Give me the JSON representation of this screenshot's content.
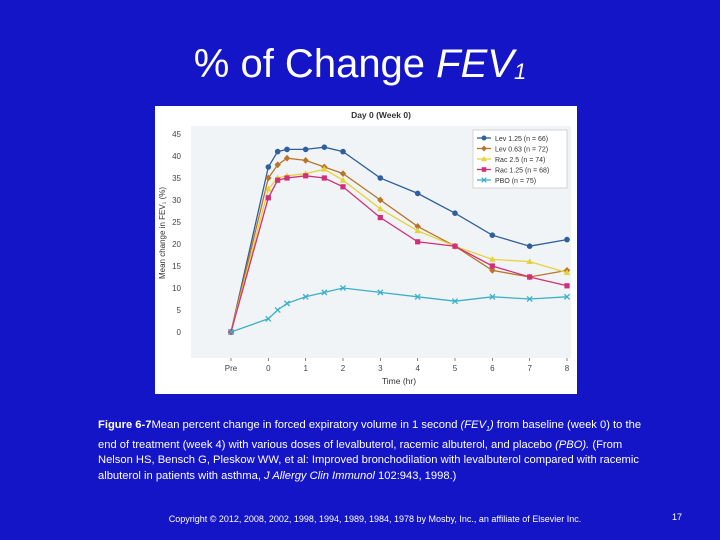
{
  "slide": {
    "title_main": "% of Change ",
    "title_fev": "FEV",
    "title_sub": "1",
    "caption_label": "Figure 6-7",
    "caption_text_1": "Mean percent change in forced expiratory volume in 1 second ",
    "caption_fev": "(FEV",
    "caption_fev_sub": "1",
    "caption_fev_close": ")",
    "caption_text_2": " from baseline (week 0) to the end of treatment (week 4) with various doses of levalbuterol, racemic albuterol, and placebo ",
    "caption_pbo": "(PBO).",
    "caption_text_3": " (From Nelson HS, Bensch G, Pleskow WW, et al: Improved bronchodilation with levalbuterol compared with racemic albuterol in patients with asthma, ",
    "caption_journal": "J Allergy Clin Immunol",
    "caption_text_4": " 102:943, 1998.)",
    "copyright": "Copyright © 2012, 2008, 2002, 1998, 1994, 1989, 1984, 1978 by Mosby, Inc., an affiliate of Elsevier Inc.",
    "page_number": "17"
  },
  "chart_data": {
    "type": "line",
    "title": "Day 0 (Week 0)",
    "xlabel": "Time (hr)",
    "ylabel": "Mean change in FEV₁ (%)",
    "x_labels": [
      "Pre",
      "0",
      "1",
      "2",
      "3",
      "4",
      "5",
      "6",
      "7",
      "8"
    ],
    "y_ticks": [
      0,
      5,
      10,
      15,
      20,
      25,
      30,
      35,
      40,
      45
    ],
    "ylim": [
      0,
      45
    ],
    "x": [
      -1,
      0,
      0.25,
      0.5,
      1,
      1.5,
      2,
      3,
      4,
      5,
      6,
      7,
      8
    ],
    "legend_position": "top-right",
    "grid": false,
    "series": [
      {
        "name": "Lev 1.25 (n = 66)",
        "color": "#2e5f9e",
        "marker": "circle",
        "values": [
          0,
          37.5,
          41,
          41.5,
          41.5,
          42,
          41,
          35,
          31.5,
          27,
          22,
          19.5,
          21
        ]
      },
      {
        "name": "Lev 0.63 (n = 72)",
        "color": "#b8752a",
        "marker": "diamond",
        "values": [
          0,
          35,
          38,
          39.5,
          39,
          37.5,
          36,
          30,
          24,
          19.5,
          14,
          12.5,
          14
        ]
      },
      {
        "name": "Rac 2.5 (n = 74)",
        "color": "#e6d23a",
        "marker": "triangle",
        "values": [
          0,
          32.5,
          35,
          35.5,
          36,
          37,
          34.5,
          28,
          23,
          19.5,
          16.5,
          16,
          13.5
        ]
      },
      {
        "name": "Rac 1.25 (n = 68)",
        "color": "#d0307a",
        "marker": "square",
        "values": [
          0,
          30.5,
          34.5,
          35,
          35.5,
          35,
          33,
          26,
          20.5,
          19.5,
          15,
          12.5,
          10.5
        ]
      },
      {
        "name": "PBO (n = 75)",
        "color": "#3ab0c8",
        "marker": "x",
        "values": [
          0,
          3,
          5,
          6.5,
          8,
          9,
          10,
          9,
          8,
          7,
          8,
          7.5,
          8
        ]
      }
    ]
  }
}
